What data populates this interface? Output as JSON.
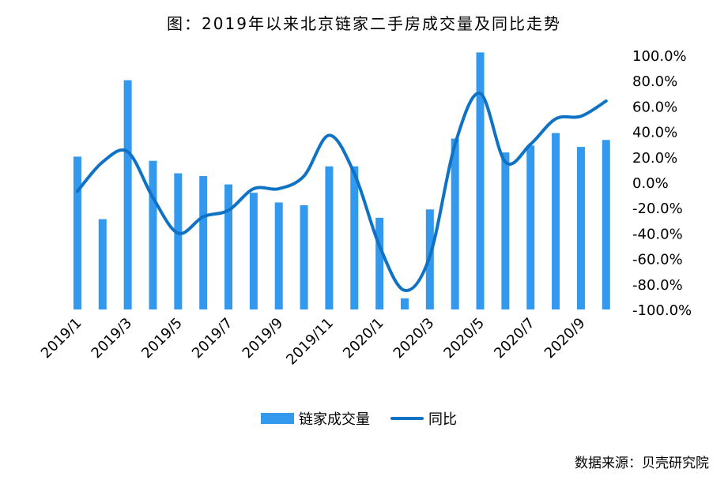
{
  "title": "图：2019年以来北京链家二手房成交量及同比走势",
  "source": "数据来源：贝壳研究院",
  "colors": {
    "bar": "#3399ee",
    "line": "#0f72c4"
  },
  "chart_data": {
    "type": "bar",
    "categories": [
      "2019/1",
      "2019/2",
      "2019/3",
      "2019/4",
      "2019/5",
      "2019/6",
      "2019/7",
      "2019/8",
      "2019/9",
      "2019/10",
      "2019/11",
      "2019/12",
      "2020/1",
      "2020/2",
      "2020/3",
      "2020/4",
      "2020/5",
      "2020/6",
      "2020/7",
      "2020/8",
      "2020/9",
      "2020/10"
    ],
    "x_tick_labels": [
      "2019/1",
      "2019/3",
      "2019/5",
      "2019/7",
      "2019/9",
      "2019/11",
      "2020/1",
      "2020/3",
      "2020/5",
      "2020/7",
      "2020/9"
    ],
    "series": [
      {
        "name": "链家成交量",
        "type": "bar",
        "axis": "hidden-left",
        "values": [
          110,
          65,
          165,
          107,
          98,
          96,
          90,
          84,
          77,
          75,
          103,
          103,
          66,
          8,
          72,
          123,
          185,
          113,
          118,
          127,
          117,
          122
        ]
      },
      {
        "name": "同比",
        "type": "line",
        "axis": "right",
        "values": [
          -7,
          16,
          24,
          -12,
          -40,
          -27,
          -22,
          -5,
          -5,
          5,
          37,
          7,
          -50,
          -85,
          -58,
          30,
          70,
          16,
          30,
          50,
          52,
          64
        ]
      }
    ],
    "y_right": {
      "ylim": [
        -100,
        100
      ],
      "ticks": [
        "100.0%",
        "80.0%",
        "60.0%",
        "40.0%",
        "20.0%",
        "0.0%",
        "-20.0%",
        "-40.0%",
        "-60.0%",
        "-80.0%",
        "-100.0%"
      ]
    },
    "bar_ylim": [
      0,
      200
    ],
    "grid": false,
    "legend": "bottom"
  }
}
